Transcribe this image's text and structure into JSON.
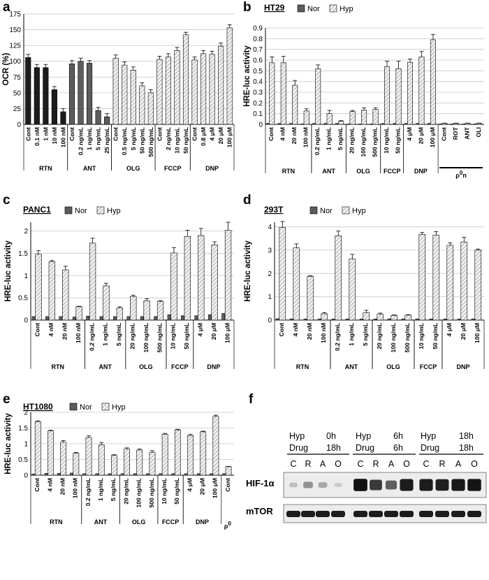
{
  "colors": {
    "nor": "#5c5c5c",
    "hyp_fill": "#f2f2f2",
    "hyp_stripe": "#8a8a8a",
    "grid": "#c8c8c8"
  },
  "panel_letters": [
    "a",
    "b",
    "c",
    "d",
    "e",
    "f"
  ],
  "legend": {
    "nor": "Nor",
    "hyp": "Hyp"
  },
  "chart_data": [
    {
      "id": "a",
      "type": "bar",
      "title": "",
      "ylabel": "OCR (%)",
      "ylim": [
        0,
        175
      ],
      "yticks": [
        0,
        25,
        50,
        75,
        100,
        125,
        150,
        175
      ],
      "categories": [
        "Cont",
        "0.1 nM",
        "1 nM",
        "10 nM",
        "100 nM",
        "Cont",
        "0.2 ng/mL",
        "1 ng/mL",
        "5 ng/mL",
        "25 ng/mL",
        "Cont",
        "0.5 ng/mL",
        "5 ng/mL",
        "50 ng/mL",
        "500 ng/mL",
        "Cont",
        "2 ng/mL",
        "10 ng/mL",
        "50 ng/mL",
        "Cont",
        "0.8 μM",
        "4 μM",
        "20 μM",
        "100 μM"
      ],
      "groups": [
        {
          "label": "RTN",
          "start": 0,
          "end": 4,
          "style": "black"
        },
        {
          "label": "ANT",
          "start": 5,
          "end": 9,
          "style": "darkgray"
        },
        {
          "label": "OLG",
          "start": 10,
          "end": 14,
          "style": "hatch"
        },
        {
          "label": "FCCP",
          "start": 15,
          "end": 18,
          "style": "hatch"
        },
        {
          "label": "DNP",
          "start": 19,
          "end": 23,
          "style": "hatch"
        }
      ],
      "values": [
        106,
        90,
        90,
        55,
        20,
        96,
        100,
        97,
        22,
        12,
        105,
        94,
        86,
        61,
        50,
        103,
        107,
        117,
        142,
        102,
        112,
        111,
        124,
        153
      ],
      "errors": [
        5,
        5,
        5,
        5,
        5,
        5,
        5,
        4,
        5,
        5,
        5,
        5,
        5,
        5,
        5,
        5,
        5,
        5,
        4,
        5,
        5,
        5,
        5,
        5
      ]
    },
    {
      "id": "b",
      "type": "bar",
      "title": "HT29",
      "ylabel": "HRE-luc activity",
      "ylim": [
        0,
        0.9
      ],
      "yticks": [
        0,
        0.1,
        0.2,
        0.3,
        0.4,
        0.5,
        0.6,
        0.7,
        0.8,
        0.9
      ],
      "series_names": [
        "Nor",
        "Hyp"
      ],
      "categories": [
        "Cont",
        "4 nM",
        "20 nM",
        "100 nM",
        "0.2 ng/mL",
        "1 ng/mL",
        "5 ng/mL",
        "20 ng/mL",
        "100 ng/mL",
        "500 ng/mL",
        "10 ng/mL",
        "50 ng/mL",
        "4 μM",
        "20 μM",
        "100 μM",
        "Cont",
        "ROT",
        "ANT",
        "OLI"
      ],
      "groups": [
        {
          "label": "RTN",
          "start": 0,
          "end": 3
        },
        {
          "label": "ANT",
          "start": 4,
          "end": 6
        },
        {
          "label": "OLG",
          "start": 7,
          "end": 9
        },
        {
          "label": "FCCP",
          "start": 10,
          "end": 11
        },
        {
          "label": "DNP",
          "start": 12,
          "end": 14
        }
      ],
      "special_group": {
        "label": "ρ",
        "sup": "0",
        "suffix": "n",
        "start": 15,
        "end": 18
      },
      "nor": [
        0.01,
        0.01,
        0.01,
        0.005,
        0.01,
        0.01,
        0.01,
        0.005,
        0.005,
        0.005,
        0.01,
        0.01,
        0.01,
        0.01,
        0.01,
        0.005,
        0.005,
        0.005,
        0.005
      ],
      "hyp": [
        0.575,
        0.575,
        0.365,
        0.125,
        0.52,
        0.1,
        0.03,
        0.12,
        0.135,
        0.14,
        0.54,
        0.52,
        0.58,
        0.63,
        0.79,
        0.01,
        0.01,
        0.01,
        0.01
      ],
      "hyp_err": [
        0.055,
        0.06,
        0.045,
        0.02,
        0.035,
        0.03,
        0.005,
        0.01,
        0.02,
        0.015,
        0.05,
        0.07,
        0.03,
        0.05,
        0.05,
        0.002,
        0.002,
        0.002,
        0.002
      ]
    },
    {
      "id": "c",
      "type": "bar",
      "title": "PANC1",
      "ylabel": "HRE-luc activity",
      "ylim": [
        0,
        2.2
      ],
      "yticks": [
        0,
        0.5,
        1,
        1.5,
        2
      ],
      "series_names": [
        "Nor",
        "Hyp"
      ],
      "categories": [
        "Cont",
        "4 nM",
        "20 nM",
        "100 nM",
        "0.2 ng/mL",
        "1 ng/mL",
        "5 ng/mL",
        "20 ng/mL",
        "100 ng/mL",
        "500 ng/mL",
        "10 ng/mL",
        "50 ng/mL",
        "4 μM",
        "20 μM",
        "100 μM"
      ],
      "groups": [
        {
          "label": "RTN",
          "start": 0,
          "end": 3
        },
        {
          "label": "ANT",
          "start": 4,
          "end": 6
        },
        {
          "label": "OLG",
          "start": 7,
          "end": 9
        },
        {
          "label": "FCCP",
          "start": 10,
          "end": 11
        },
        {
          "label": "DNP",
          "start": 12,
          "end": 14
        }
      ],
      "nor": [
        0.08,
        0.08,
        0.08,
        0.07,
        0.09,
        0.08,
        0.08,
        0.08,
        0.08,
        0.08,
        0.12,
        0.1,
        0.1,
        0.12,
        0.15
      ],
      "hyp": [
        1.48,
        1.31,
        1.13,
        0.3,
        1.73,
        0.77,
        0.27,
        0.53,
        0.43,
        0.42,
        1.51,
        1.88,
        1.9,
        1.69,
        2.02
      ],
      "hyp_err": [
        0.08,
        0.03,
        0.08,
        0.01,
        0.11,
        0.06,
        0.03,
        0.03,
        0.05,
        0.02,
        0.12,
        0.14,
        0.16,
        0.07,
        0.18
      ]
    },
    {
      "id": "d",
      "type": "bar",
      "title": "293T",
      "ylabel": "HRE-luc activity",
      "ylim": [
        0,
        4.2
      ],
      "yticks": [
        0,
        1,
        2,
        3,
        4
      ],
      "series_names": [
        "Nor",
        "Hyp"
      ],
      "categories": [
        "Cont",
        "4 nM",
        "20 nM",
        "100 nM",
        "0.2 ng/mL",
        "1 ng/mL",
        "5 ng/mL",
        "20 ng/mL",
        "100 ng/mL",
        "500 ng/mL",
        "10 ng/mL",
        "50 ng/mL",
        "4 μM",
        "20 μM",
        "100 μM"
      ],
      "groups": [
        {
          "label": "RTN",
          "start": 0,
          "end": 3
        },
        {
          "label": "ANT",
          "start": 4,
          "end": 6
        },
        {
          "label": "OLG",
          "start": 7,
          "end": 9
        },
        {
          "label": "FCCP",
          "start": 10,
          "end": 11
        },
        {
          "label": "DNP",
          "start": 12,
          "end": 14
        }
      ],
      "nor": [
        0.06,
        0.05,
        0.05,
        0.05,
        0.05,
        0.05,
        0.05,
        0.05,
        0.05,
        0.05,
        0.05,
        0.05,
        0.05,
        0.05,
        0.05
      ],
      "hyp": [
        3.98,
        3.1,
        1.87,
        0.27,
        3.62,
        2.62,
        0.32,
        0.25,
        0.2,
        0.21,
        3.68,
        3.65,
        3.21,
        3.35,
        3.0
      ],
      "hyp_err": [
        0.25,
        0.17,
        0.03,
        0.05,
        0.2,
        0.2,
        0.1,
        0.05,
        0.02,
        0.02,
        0.08,
        0.15,
        0.1,
        0.2,
        0.05
      ]
    },
    {
      "id": "e",
      "type": "bar",
      "title": "HT1080",
      "ylabel": "HRE-luc activity",
      "ylim": [
        0,
        2.0
      ],
      "yticks": [
        0,
        0.5,
        1,
        1.5,
        2
      ],
      "series_names": [
        "Nor",
        "Hyp"
      ],
      "categories": [
        "Cont",
        "4 nM",
        "20 nM",
        "100 nM",
        "0.2 ng/mL",
        "1 ng/mL",
        "5 ng/mL",
        "20 ng/mL",
        "100 ng/mL",
        "500 ng/mL",
        "10 ng/mL",
        "50 ng/mL",
        "4 μM",
        "20 μM",
        "100 μM",
        "Cont"
      ],
      "groups": [
        {
          "label": "RTN",
          "start": 0,
          "end": 3
        },
        {
          "label": "ANT",
          "start": 4,
          "end": 6
        },
        {
          "label": "OLG",
          "start": 7,
          "end": 9
        },
        {
          "label": "FCCP",
          "start": 10,
          "end": 11
        },
        {
          "label": "DNP",
          "start": 12,
          "end": 14
        }
      ],
      "special_group": {
        "label": "ρ",
        "sup": "0",
        "suffix": "",
        "start": 15,
        "end": 15
      },
      "nor": [
        0.04,
        0.06,
        0.06,
        0.07,
        0.05,
        0.05,
        0.05,
        0.05,
        0.05,
        0.05,
        0.05,
        0.05,
        0.05,
        0.05,
        0.05,
        0.05
      ],
      "hyp": [
        1.7,
        1.41,
        1.05,
        0.7,
        1.2,
        0.96,
        0.63,
        0.83,
        0.8,
        0.73,
        1.3,
        1.44,
        1.26,
        1.38,
        1.87,
        0.27
      ],
      "hyp_err": [
        0.03,
        0.02,
        0.05,
        0.02,
        0.05,
        0.08,
        0.02,
        0.04,
        0.03,
        0.05,
        0.03,
        0.02,
        0.04,
        0.02,
        0.04,
        0.01
      ]
    }
  ],
  "blot": {
    "blocks": [
      {
        "hyp_label": "Hyp",
        "hyp_time": "0h",
        "drug_label": "Drug",
        "drug_time": "18h"
      },
      {
        "hyp_label": "Hyp",
        "hyp_time": "6h",
        "drug_label": "Drug",
        "drug_time": "6h"
      },
      {
        "hyp_label": "Hyp",
        "hyp_time": "18h",
        "drug_label": "Drug",
        "drug_time": "18h"
      }
    ],
    "lanes": [
      "C",
      "R",
      "A",
      "O",
      "C",
      "R",
      "A",
      "O",
      "C",
      "R",
      "A",
      "O"
    ],
    "rows": [
      "HIF-1α",
      "mTOR"
    ],
    "hif_intensity": [
      0.18,
      0.38,
      0.28,
      0.12,
      0.97,
      0.78,
      0.62,
      0.92,
      0.92,
      0.9,
      0.93,
      0.95
    ],
    "mtor_intensity": [
      0.92,
      0.92,
      0.92,
      0.92,
      0.92,
      0.92,
      0.92,
      0.92,
      0.92,
      0.92,
      0.92,
      0.92
    ]
  }
}
